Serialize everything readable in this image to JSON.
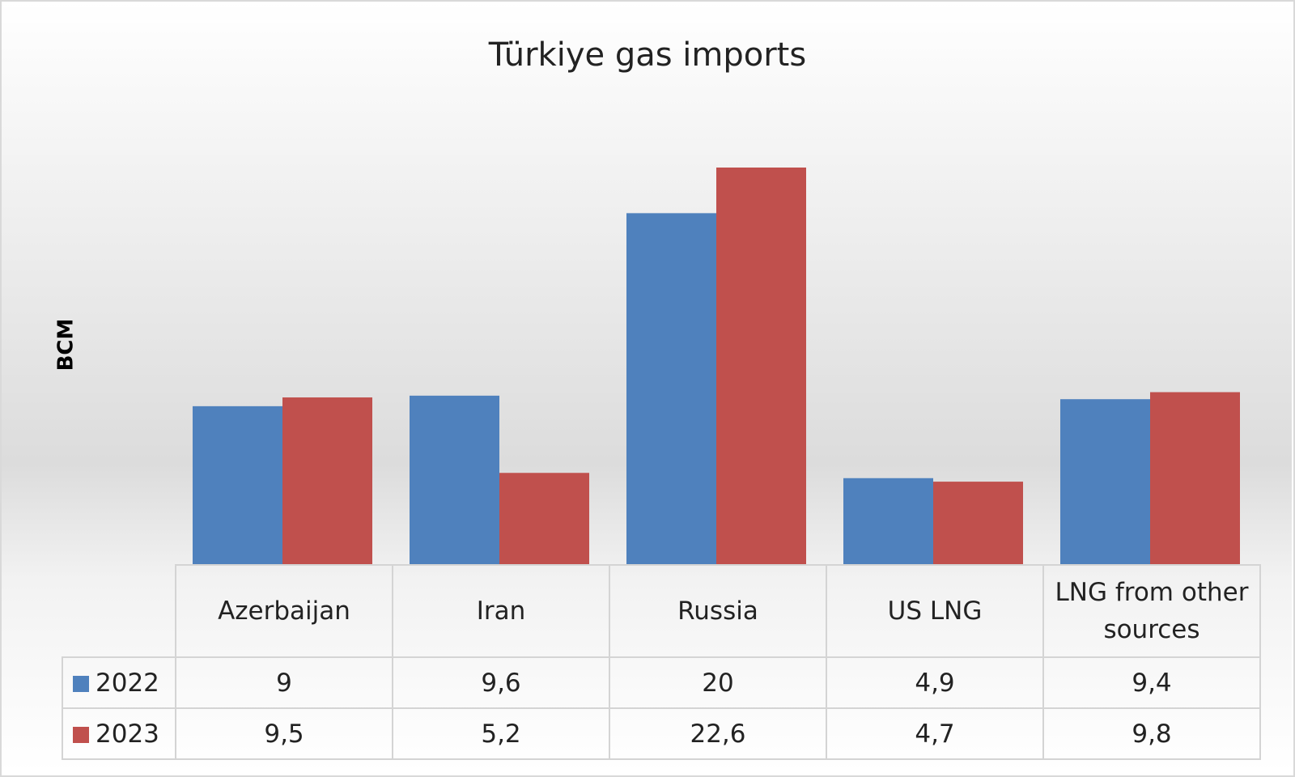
{
  "chart_data": {
    "type": "bar",
    "title": "Türkiye gas imports",
    "y_label": "BCM",
    "categories": [
      "Azerbaijan",
      "Iran",
      "Russia",
      "US LNG",
      "LNG from other sources"
    ],
    "series": [
      {
        "name": "2022",
        "color": "#4f81bd",
        "values": [
          9,
          9.6,
          20,
          4.9,
          9.4
        ],
        "value_labels": [
          "9",
          "9,6",
          "20",
          "4,9",
          "9,4"
        ]
      },
      {
        "name": "2023",
        "color": "#c0504d",
        "values": [
          9.5,
          5.2,
          22.6,
          4.7,
          9.8
        ],
        "value_labels": [
          "9,5",
          "5,2",
          "22,6",
          "4,7",
          "9,8"
        ]
      }
    ]
  }
}
